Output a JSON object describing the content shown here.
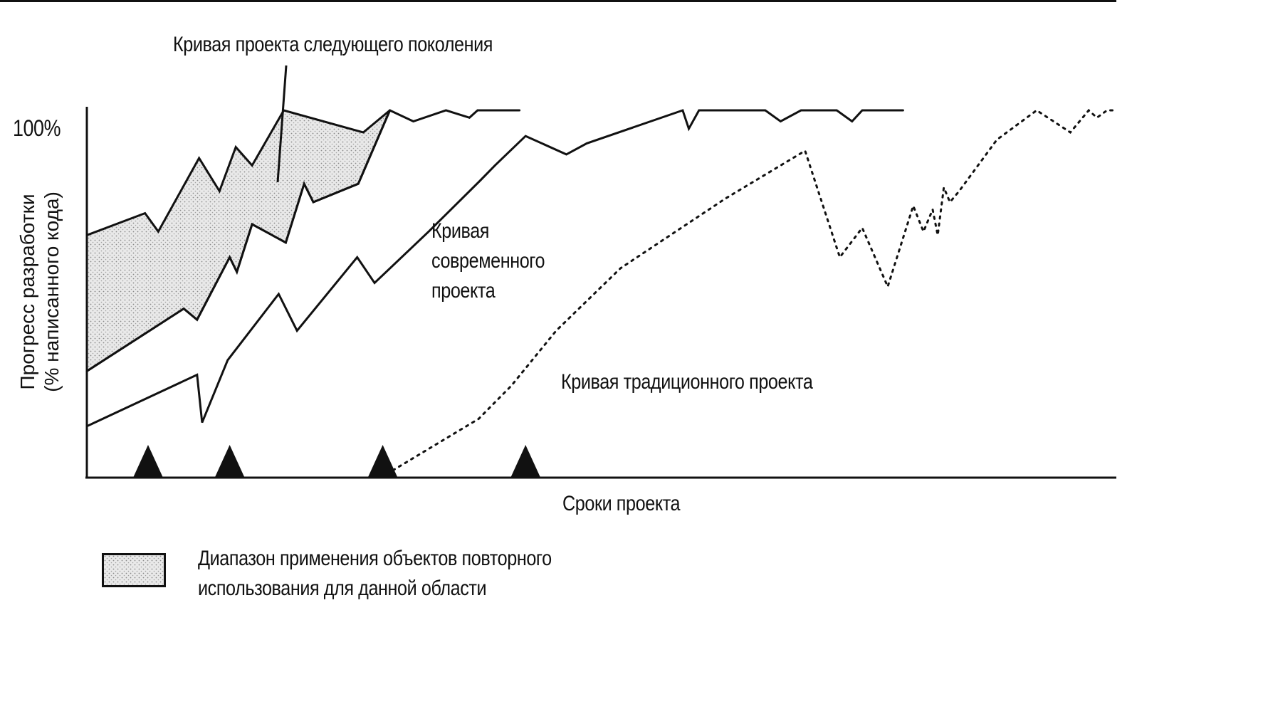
{
  "chart_data": {
    "type": "line",
    "title": "Кривая проекта следующего поколения",
    "xlabel": "Сроки проекта",
    "ylabel": [
      "Прогресс разработки",
      "(% написанного кода)"
    ],
    "ytick": "100%",
    "ylim": [
      0,
      100
    ],
    "xlim": [
      0,
      100
    ],
    "grid": false,
    "series": [
      {
        "name": "Кривая проекта следующего поколения",
        "style": "solid",
        "upper": [
          [
            0,
            66
          ],
          [
            5.7,
            72
          ],
          [
            7,
            67
          ],
          [
            11,
            87
          ],
          [
            13,
            78
          ],
          [
            14.6,
            90
          ],
          [
            16.2,
            85
          ],
          [
            19.3,
            100
          ],
          [
            27.1,
            94
          ],
          [
            29.7,
            100
          ],
          [
            32,
            97
          ],
          [
            35.2,
            100
          ],
          [
            37.5,
            98
          ],
          [
            38.3,
            100
          ],
          [
            42.4,
            100
          ]
        ],
        "lower": [
          [
            0,
            29
          ],
          [
            9.5,
            46
          ],
          [
            10.8,
            43
          ],
          [
            14,
            60
          ],
          [
            14.7,
            56
          ],
          [
            16.2,
            69
          ],
          [
            19.5,
            64
          ],
          [
            21.3,
            80
          ],
          [
            22.2,
            75
          ],
          [
            26.6,
            80
          ],
          [
            29.7,
            100
          ]
        ]
      },
      {
        "name": "Кривая современного проекта",
        "style": "solid",
        "upper": [
          [
            0,
            14
          ],
          [
            10.8,
            28
          ],
          [
            11.3,
            15
          ],
          [
            13.8,
            32
          ],
          [
            18.8,
            50
          ],
          [
            20.6,
            40
          ],
          [
            26.5,
            60
          ],
          [
            28.2,
            53
          ],
          [
            33.5,
            67
          ],
          [
            38.6,
            81
          ],
          [
            40,
            85
          ],
          [
            43,
            93
          ],
          [
            47,
            88
          ],
          [
            49,
            91
          ],
          [
            58.4,
            100
          ],
          [
            59,
            95
          ],
          [
            60,
            100
          ],
          [
            66.5,
            100
          ],
          [
            68,
            97
          ],
          [
            70,
            100
          ],
          [
            73.5,
            100
          ],
          [
            75,
            97
          ],
          [
            76,
            100
          ],
          [
            80,
            100
          ]
        ],
        "lower": [
          [
            0,
            29
          ],
          [
            9.5,
            46
          ],
          [
            10.8,
            43
          ],
          [
            14,
            60
          ],
          [
            14.7,
            56
          ],
          [
            16.2,
            69
          ],
          [
            19.5,
            64
          ],
          [
            21.3,
            80
          ],
          [
            22.2,
            75
          ],
          [
            26.6,
            80
          ],
          [
            29.7,
            100
          ]
        ]
      },
      {
        "name": "Кривая традиционного проекта",
        "style": "dotted",
        "points": [
          [
            30,
            2
          ],
          [
            38.4,
            16
          ],
          [
            41.6,
            25
          ],
          [
            46,
            40
          ],
          [
            52.3,
            57
          ],
          [
            62.6,
            76
          ],
          [
            70.4,
            89
          ],
          [
            73.8,
            60
          ],
          [
            76,
            68
          ],
          [
            78.5,
            52
          ],
          [
            81,
            74
          ],
          [
            82,
            67
          ],
          [
            82.9,
            73
          ],
          [
            83.4,
            66
          ],
          [
            84,
            79
          ],
          [
            84.6,
            75
          ],
          [
            85.5,
            78
          ],
          [
            89.2,
            92
          ],
          [
            93.1,
            100
          ],
          [
            96.4,
            94
          ],
          [
            98.2,
            100
          ],
          [
            99,
            98
          ],
          [
            100,
            100
          ],
          [
            101,
            100
          ]
        ]
      }
    ],
    "milestones": [
      6,
      14,
      29,
      43
    ],
    "legend": {
      "label": "Диапазон применения объектов повторного использования для данной области",
      "lines": [
        "Диапазон применения объектов повторного",
        "использования для данной области"
      ]
    },
    "labels": {
      "next": "Кривая проекта следующего поколения",
      "modern": "Кривая современного проекта",
      "modern_lines": [
        "Кривая",
        "современного",
        "проекта"
      ],
      "traditional": "Кривая традиционного проекта"
    }
  }
}
